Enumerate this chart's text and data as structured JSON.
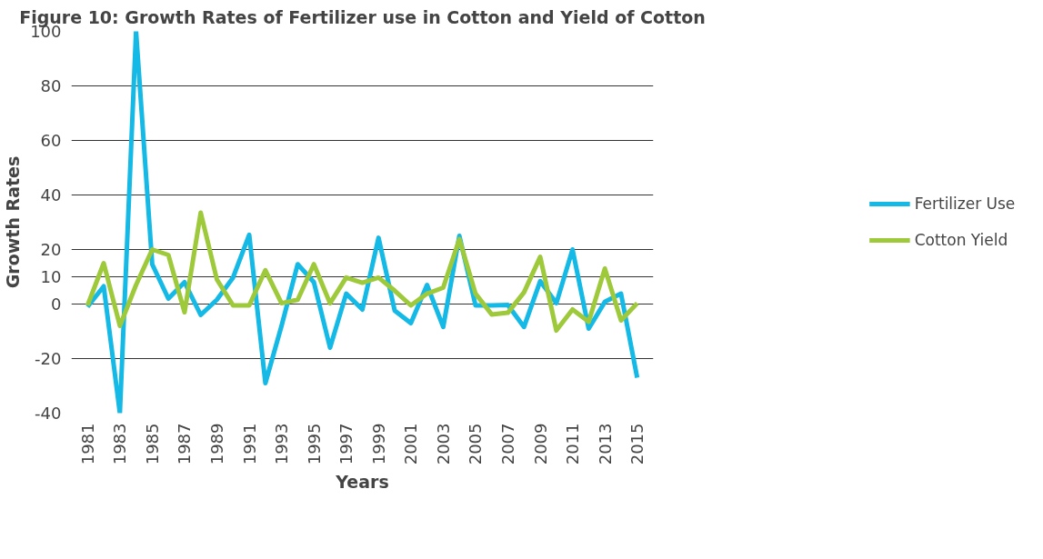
{
  "chart_data": {
    "type": "line",
    "title": "Figure 10: Growth Rates of Fertilizer use in Cotton and Yield of Cotton",
    "xlabel": "Years",
    "ylabel": "Growth Rates",
    "categories": [
      "1981",
      null,
      "1983",
      null,
      "1985",
      null,
      "1987",
      null,
      "1989",
      null,
      "1991",
      null,
      "1993",
      null,
      "1995",
      null,
      "1997",
      null,
      "1999",
      null,
      "2001",
      null,
      "2003",
      null,
      "2005",
      null,
      "2007",
      null,
      "2009",
      null,
      "2011",
      null,
      "2013",
      null,
      "2015"
    ],
    "series": [
      {
        "name": "Fertilizer Use",
        "color": "#14b9e6",
        "values": [
          -1,
          6.5,
          -40,
          100,
          14.6,
          2,
          8,
          -4,
          1.6,
          9.7,
          25.4,
          -29,
          -8,
          14.6,
          8,
          -16,
          3.8,
          -2,
          24.3,
          -2.4,
          -7,
          7,
          -8.4,
          25,
          -0.5,
          -0.5,
          -0.3,
          -8.4,
          8.4,
          0.3,
          20,
          -9,
          0.8,
          3.8,
          -27
        ]
      },
      {
        "name": "Cotton Yield",
        "color": "#9dc93b",
        "values": [
          -0.5,
          15,
          -8,
          7,
          20,
          18,
          -3,
          33.5,
          9,
          -0.5,
          -0.5,
          12.4,
          0.3,
          1.6,
          14.6,
          0.3,
          9.7,
          7.8,
          9.7,
          4.9,
          -0.5,
          3.8,
          6,
          23.8,
          3.8,
          -3.8,
          -3.2,
          4.3,
          17.3,
          -9.7,
          -2,
          -6.5,
          13,
          -6,
          0.3
        ]
      }
    ],
    "ylim": [
      -40,
      100
    ],
    "yticks": [
      100,
      80,
      60,
      40,
      20,
      10,
      0,
      -20,
      -40
    ],
    "grid": "y",
    "legend": "right",
    "marker": "none",
    "line_style": "solid"
  }
}
